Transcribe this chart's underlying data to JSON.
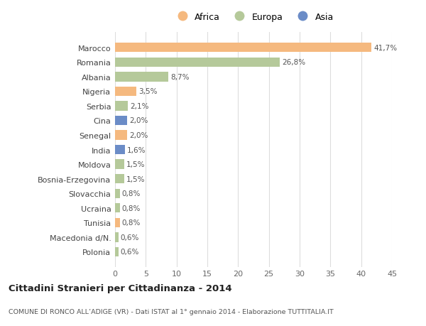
{
  "categories": [
    "Marocco",
    "Romania",
    "Albania",
    "Nigeria",
    "Serbia",
    "Cina",
    "Senegal",
    "India",
    "Moldova",
    "Bosnia-Erzegovina",
    "Slovacchia",
    "Ucraina",
    "Tunisia",
    "Macedonia d/N.",
    "Polonia"
  ],
  "values": [
    41.7,
    26.8,
    8.7,
    3.5,
    2.1,
    2.0,
    2.0,
    1.6,
    1.5,
    1.5,
    0.8,
    0.8,
    0.8,
    0.6,
    0.6
  ],
  "labels": [
    "41,7%",
    "26,8%",
    "8,7%",
    "3,5%",
    "2,1%",
    "2,0%",
    "2,0%",
    "1,6%",
    "1,5%",
    "1,5%",
    "0,8%",
    "0,8%",
    "0,8%",
    "0,6%",
    "0,6%"
  ],
  "continents": [
    "Africa",
    "Europa",
    "Europa",
    "Africa",
    "Europa",
    "Asia",
    "Africa",
    "Asia",
    "Europa",
    "Europa",
    "Europa",
    "Europa",
    "Africa",
    "Europa",
    "Europa"
  ],
  "continent_colors": {
    "Africa": "#F5B97F",
    "Europa": "#B5C99A",
    "Asia": "#6B8CC7"
  },
  "legend_items": [
    "Africa",
    "Europa",
    "Asia"
  ],
  "title": "Cittadini Stranieri per Cittadinanza - 2014",
  "subtitle": "COMUNE DI RONCO ALL’ADIGE (VR) - Dati ISTAT al 1° gennaio 2014 - Elaborazione TUTTITALIA.IT",
  "xlim": [
    0,
    45
  ],
  "xticks": [
    0,
    5,
    10,
    15,
    20,
    25,
    30,
    35,
    40,
    45
  ],
  "background_color": "#ffffff",
  "plot_bg_color": "#ffffff"
}
